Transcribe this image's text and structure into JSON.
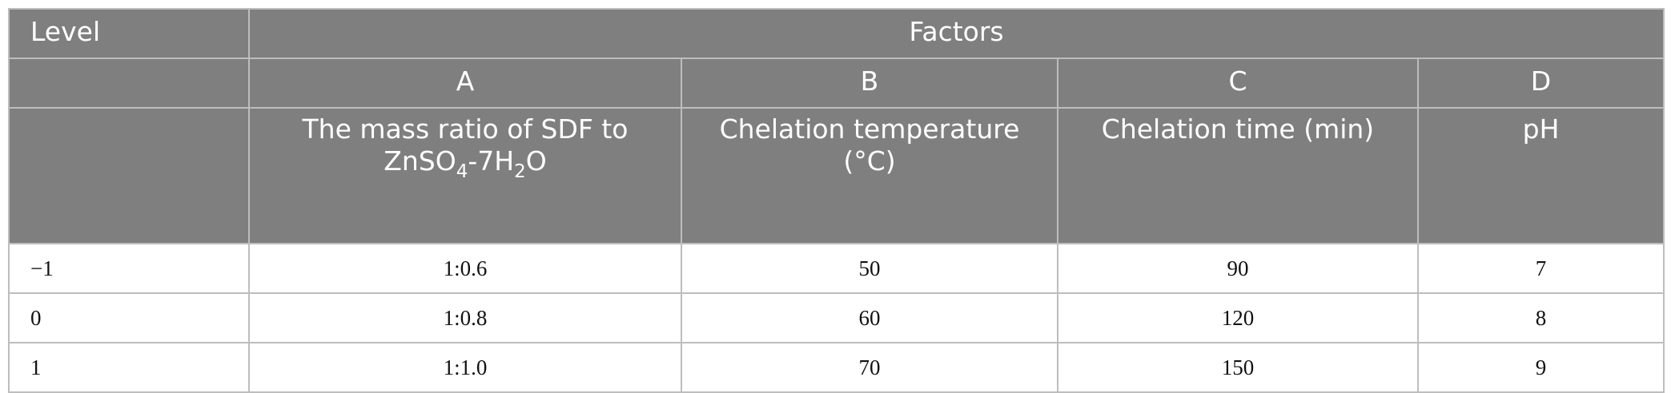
{
  "table": {
    "header": {
      "level_label": "Level",
      "factors_label": "Factors",
      "factor_letters": [
        "A",
        "B",
        "C",
        "D"
      ],
      "factor_a_name_line1": "The mass ratio of SDF to",
      "factor_a_name_line2": {
        "part1": "ZnSO",
        "sub1": "4",
        "part2": "-7H",
        "sub2": "2",
        "part3": "O"
      },
      "factor_b_name_line1": "Chelation temperature",
      "factor_b_name_line2": "(°C)",
      "factor_c_name": "Chelation time (min)",
      "factor_d_name": "pH"
    },
    "rows": [
      {
        "level": "−1",
        "a": "1:0.6",
        "b": "50",
        "c": "90",
        "d": "7"
      },
      {
        "level": "0",
        "a": "1:0.8",
        "b": "60",
        "c": "120",
        "d": "8"
      },
      {
        "level": "1",
        "a": "1:1.0",
        "b": "70",
        "c": "150",
        "d": "9"
      }
    ]
  },
  "colors": {
    "header_bg": "#7f7f7f",
    "header_text": "#ffffff",
    "grid": "#bdbdbd",
    "body_text": "#111111"
  }
}
